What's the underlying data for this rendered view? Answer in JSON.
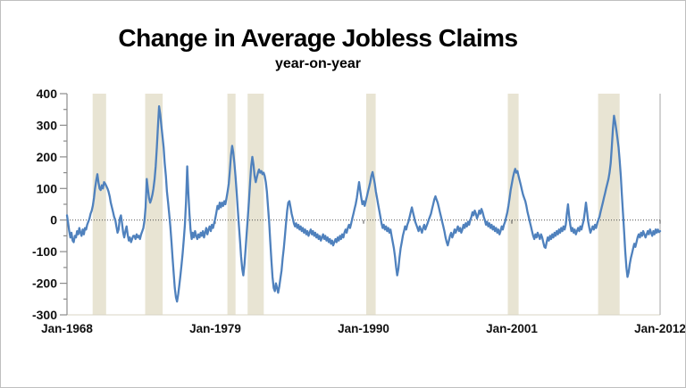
{
  "chart_data": {
    "type": "line",
    "title": "Change in Average Jobless Claims",
    "subtitle": "year-on-year",
    "ylim": [
      -300,
      400
    ],
    "y_tick_step": 100,
    "y_minor_tick_step": 50,
    "x_range_years": [
      1968,
      2012
    ],
    "x_tick_years": [
      1968,
      1979,
      1990,
      2001,
      2012
    ],
    "x_tick_labels": [
      "Jan-1968",
      "Jan-1979",
      "Jan-1990",
      "Jan-2001",
      "Jan-2012"
    ],
    "grid": false,
    "legend": "none",
    "zero_line": true,
    "colors": {
      "line": "#4f81bd",
      "recession_band": "#e8e4d3",
      "axis": "#8c8c8c",
      "zero_line": "#4d4d4d",
      "plot_right_border": "#a6a6a6",
      "plot_bottom_border": "#d8d4c5",
      "text": "#111111"
    },
    "recession_bands": {
      "ranges_years": [
        [
          1969.9,
          1970.9
        ],
        [
          1973.8,
          1975.1
        ],
        [
          1979.9,
          1980.5
        ],
        [
          1981.4,
          1982.6
        ],
        [
          1990.2,
          1990.9
        ],
        [
          2000.7,
          2001.5
        ],
        [
          2007.4,
          2009.0
        ]
      ]
    },
    "series": [
      {
        "start_year": 1968,
        "step_months": 1,
        "values": [
          15,
          -10,
          -35,
          -55,
          -40,
          -65,
          -70,
          -50,
          -55,
          -35,
          -45,
          -25,
          -40,
          -50,
          -30,
          -45,
          -25,
          -30,
          -15,
          -5,
          5,
          20,
          30,
          45,
          70,
          100,
          125,
          145,
          120,
          100,
          95,
          110,
          100,
          120,
          115,
          108,
          100,
          90,
          75,
          55,
          40,
          25,
          10,
          0,
          -20,
          -40,
          -30,
          5,
          15,
          -10,
          -40,
          -55,
          -35,
          -20,
          -45,
          -65,
          -55,
          -70,
          -60,
          -50,
          -50,
          -60,
          -45,
          -55,
          -50,
          -60,
          -45,
          -35,
          -25,
          0,
          40,
          130,
          100,
          70,
          55,
          65,
          80,
          100,
          130,
          170,
          230,
          300,
          360,
          335,
          300,
          265,
          230,
          180,
          140,
          90,
          55,
          20,
          -20,
          -70,
          -120,
          -170,
          -215,
          -245,
          -258,
          -235,
          -205,
          -175,
          -140,
          -105,
          -60,
          -15,
          60,
          170,
          90,
          20,
          -30,
          -60,
          -40,
          -55,
          -35,
          -50,
          -60,
          -45,
          -55,
          -40,
          -50,
          -35,
          -55,
          -40,
          -25,
          -45,
          -30,
          -20,
          -35,
          -15,
          -25,
          -10,
          5,
          25,
          45,
          35,
          55,
          40,
          55,
          45,
          60,
          50,
          70,
          90,
          115,
          155,
          205,
          235,
          215,
          180,
          140,
          90,
          35,
          -15,
          -65,
          -115,
          -155,
          -175,
          -140,
          -90,
          -40,
          10,
          60,
          120,
          170,
          200,
          175,
          140,
          120,
          135,
          150,
          160,
          150,
          155,
          145,
          150,
          140,
          120,
          90,
          40,
          -10,
          -70,
          -130,
          -180,
          -215,
          -225,
          -200,
          -215,
          -230,
          -210,
          -185,
          -160,
          -120,
          -90,
          -50,
          -10,
          30,
          55,
          60,
          40,
          20,
          5,
          -10,
          -20,
          -10,
          -25,
          -15,
          -30,
          -20,
          -35,
          -25,
          -40,
          -30,
          -45,
          -35,
          -50,
          -40,
          -30,
          -45,
          -35,
          -50,
          -40,
          -55,
          -45,
          -60,
          -50,
          -65,
          -55,
          -45,
          -60,
          -50,
          -65,
          -55,
          -70,
          -60,
          -75,
          -65,
          -80,
          -70,
          -60,
          -70,
          -55,
          -65,
          -50,
          -60,
          -45,
          -55,
          -40,
          -30,
          -40,
          -25,
          -15,
          -25,
          -10,
          5,
          20,
          35,
          50,
          70,
          95,
          120,
          95,
          70,
          50,
          60,
          45,
          60,
          75,
          90,
          105,
          120,
          140,
          152,
          135,
          115,
          90,
          70,
          50,
          30,
          10,
          -10,
          -25,
          -15,
          -30,
          -20,
          -35,
          -25,
          -40,
          -30,
          -50,
          -70,
          -90,
          -115,
          -150,
          -175,
          -155,
          -120,
          -90,
          -70,
          -50,
          -35,
          -20,
          -30,
          -15,
          -5,
          10,
          25,
          40,
          25,
          10,
          -5,
          -15,
          -25,
          -35,
          -20,
          -30,
          -40,
          -25,
          -15,
          -30,
          -20,
          -10,
          0,
          10,
          20,
          35,
          50,
          65,
          75,
          65,
          55,
          40,
          25,
          10,
          -5,
          -20,
          -35,
          -55,
          -70,
          -80,
          -65,
          -50,
          -40,
          -55,
          -45,
          -30,
          -40,
          -30,
          -20,
          -35,
          -25,
          -40,
          -30,
          -15,
          -25,
          -10,
          -20,
          -5,
          -15,
          0,
          10,
          25,
          15,
          30,
          20,
          5,
          15,
          30,
          20,
          35,
          25,
          10,
          0,
          -15,
          -5,
          -20,
          -10,
          -25,
          -15,
          -30,
          -20,
          -35,
          -25,
          -40,
          -30,
          -45,
          -35,
          -20,
          -30,
          -15,
          -5,
          10,
          25,
          45,
          70,
          95,
          115,
          135,
          150,
          162,
          150,
          155,
          140,
          125,
          110,
          95,
          80,
          70,
          60,
          45,
          25,
          10,
          -5,
          -20,
          -35,
          -50,
          -60,
          -45,
          -55,
          -40,
          -50,
          -60,
          -45,
          -55,
          -70,
          -85,
          -88,
          -70,
          -55,
          -65,
          -50,
          -60,
          -45,
          -55,
          -40,
          -50,
          -35,
          -45,
          -30,
          -40,
          -25,
          -35,
          -20,
          -30,
          -15,
          20,
          50,
          15,
          -15,
          -35,
          -25,
          -40,
          -30,
          -45,
          -35,
          -25,
          -35,
          -20,
          -30,
          -15,
          0,
          25,
          55,
          25,
          -5,
          -25,
          -40,
          -30,
          -20,
          -30,
          -15,
          -25,
          -10,
          0,
          10,
          25,
          40,
          55,
          70,
          85,
          100,
          115,
          130,
          150,
          180,
          230,
          290,
          330,
          310,
          285,
          260,
          230,
          190,
          140,
          80,
          20,
          -40,
          -100,
          -150,
          -180,
          -165,
          -140,
          -120,
          -105,
          -90,
          -75,
          -85,
          -70,
          -55,
          -45,
          -55,
          -40,
          -50,
          -35,
          -45,
          -55,
          -45,
          -35,
          -45,
          -30,
          -40,
          -50,
          -35,
          -45,
          -30,
          -40,
          -30,
          -38,
          -35
        ]
      }
    ]
  }
}
